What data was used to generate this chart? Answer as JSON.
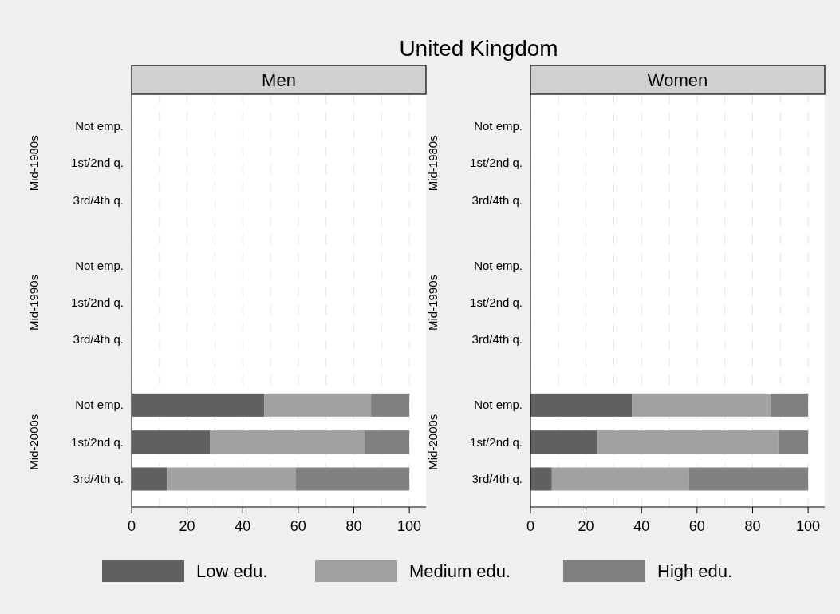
{
  "chart_data": [
    {
      "type": "bar",
      "orientation": "horizontal",
      "stacked": true,
      "title": "United Kingdom",
      "subtitle": "Men",
      "categories": [
        "Not emp.",
        "1st/2nd q.",
        "3rd/4th q.",
        "Not emp.",
        "1st/2nd q.",
        "3rd/4th q.",
        "Not emp.",
        "1st/2nd q.",
        "3rd/4th q."
      ],
      "annotations": [
        "Mid-1980s",
        "Mid-1990s",
        "Mid-2000s"
      ],
      "series": [
        {
          "name": "Low edu.",
          "color": "#606060",
          "values": [
            null,
            null,
            null,
            null,
            null,
            null,
            47.7,
            28.3,
            12.7
          ]
        },
        {
          "name": "Medium edu.",
          "color": "#a0a0a0",
          "values": [
            null,
            null,
            null,
            null,
            null,
            null,
            38.5,
            55.6,
            46.3
          ]
        },
        {
          "name": "High edu.",
          "color": "#808080",
          "values": [
            null,
            null,
            null,
            null,
            null,
            null,
            13.8,
            16.1,
            41.0
          ]
        }
      ],
      "xlim": [
        0,
        106
      ],
      "xticks": [
        0,
        {
          "value": 10,
          "label": null
        },
        20,
        {
          "value": 30,
          "label": null
        },
        40,
        {
          "value": 50,
          "label": null
        },
        60,
        {
          "value": 70,
          "label": null
        },
        80,
        {
          "value": 90,
          "label": null
        },
        100
      ],
      "grid": "x",
      "legend": "bottom"
    },
    {
      "type": "bar",
      "orientation": "horizontal",
      "stacked": true,
      "subtitle": "Women",
      "categories": [
        "Not emp.",
        "1st/2nd q.",
        "3rd/4th q.",
        "Not emp.",
        "1st/2nd q.",
        "3rd/4th q.",
        "Not emp.",
        "1st/2nd q.",
        "3rd/4th q."
      ],
      "annotations": [
        "Mid-1980s",
        "Mid-1990s",
        "Mid-2000s"
      ],
      "series": [
        {
          "color": "#606060",
          "values": [
            null,
            null,
            null,
            null,
            null,
            null,
            36.5,
            23.9,
            7.7
          ]
        },
        {
          "color": "#a0a0a0",
          "values": [
            null,
            null,
            null,
            null,
            null,
            null,
            49.9,
            65.4,
            49.3
          ]
        },
        {
          "color": "#808080",
          "values": [
            null,
            null,
            null,
            null,
            null,
            null,
            13.6,
            10.7,
            43.0
          ]
        }
      ],
      "xlim": [
        0,
        106
      ],
      "xticks": [
        0,
        {
          "value": 10,
          "label": null
        },
        20,
        {
          "value": 30,
          "label": null
        },
        40,
        {
          "value": 50,
          "label": null
        },
        60,
        {
          "value": 70,
          "label": null
        },
        80,
        {
          "value": 90,
          "label": null
        },
        100
      ],
      "grid": "x"
    }
  ]
}
